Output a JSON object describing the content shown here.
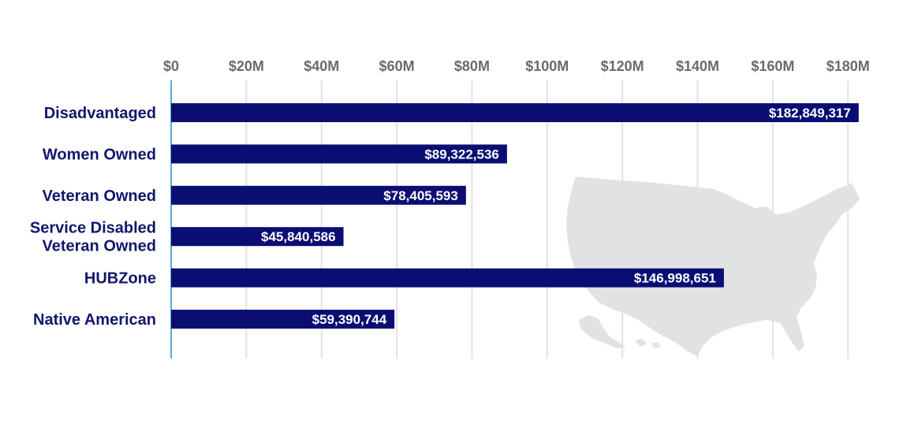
{
  "chart_data": {
    "type": "bar",
    "orientation": "horizontal",
    "categories": [
      [
        "Disadvantaged"
      ],
      [
        "Women Owned"
      ],
      [
        "Veteran Owned"
      ],
      [
        "Service Disabled",
        "Veteran Owned"
      ],
      [
        "HUBZone"
      ],
      [
        "Native American"
      ]
    ],
    "values": [
      182849317,
      89322536,
      78405593,
      45840586,
      146998651,
      59390744
    ],
    "data_labels": [
      "$182,849,317",
      "$89,322,536",
      "$78,405,593",
      "$45,840,586",
      "$146,998,651",
      "$59,390,744"
    ],
    "x_ticks": [
      0,
      20000000,
      40000000,
      60000000,
      80000000,
      100000000,
      120000000,
      140000000,
      160000000,
      180000000
    ],
    "x_tick_labels": [
      "$0",
      "$20M",
      "$40M",
      "$60M",
      "$80M",
      "$100M",
      "$120M",
      "$140M",
      "$160M",
      "$180M"
    ],
    "xlim": [
      0,
      181000000
    ],
    "grid": true,
    "background_image": "us-map-silhouette",
    "colors": {
      "bar": "#0a0e73",
      "category_text": "#11166b",
      "tick_text": "#6b6b6b",
      "grid": "#e2e2e2",
      "axis": "#2a8ad0",
      "map": "#e1e2e4",
      "data_label_text": "#ffffff"
    }
  }
}
